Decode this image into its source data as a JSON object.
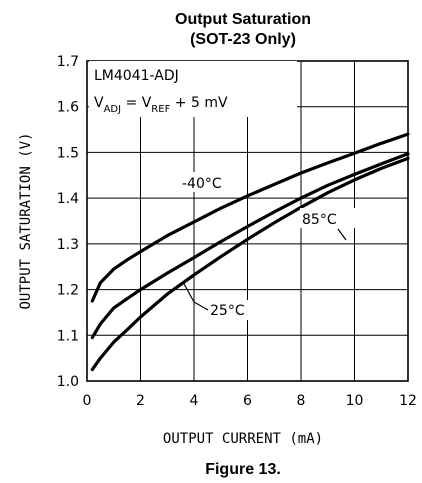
{
  "chart_data": {
    "type": "line",
    "title": "Output Saturation",
    "subtitle": "(SOT-23 Only)",
    "xlabel": "OUTPUT CURRENT (mA)",
    "ylabel": "OUTPUT SATURATION (V)",
    "xlim": [
      0,
      12
    ],
    "ylim": [
      1.0,
      1.7
    ],
    "x_ticks": [
      "0",
      "2",
      "4",
      "6",
      "8",
      "10",
      "12"
    ],
    "y_ticks": [
      "1.0",
      "1.1",
      "1.2",
      "1.3",
      "1.4",
      "1.5",
      "1.6",
      "1.7"
    ],
    "grid": true,
    "annotation": {
      "device": "LM4041-ADJ",
      "condition": {
        "v": "V",
        "adj": "ADJ",
        "eq": " = ",
        "v2": "V",
        "ref": "REF",
        "rest": " + 5 mV"
      }
    },
    "series": [
      {
        "name": "-40°C",
        "x": [
          0.2,
          0.5,
          1,
          1.5,
          2,
          3,
          4,
          5,
          6,
          7,
          8,
          9,
          10,
          11,
          12
        ],
        "y": [
          1.175,
          1.215,
          1.245,
          1.265,
          1.283,
          1.318,
          1.348,
          1.378,
          1.405,
          1.43,
          1.455,
          1.477,
          1.498,
          1.52,
          1.54
        ]
      },
      {
        "name": "85°C",
        "x": [
          0.2,
          0.5,
          1,
          1.5,
          2,
          3,
          4,
          5,
          6,
          7,
          8,
          9,
          10,
          11,
          12
        ],
        "y": [
          1.095,
          1.125,
          1.16,
          1.18,
          1.2,
          1.236,
          1.27,
          1.305,
          1.338,
          1.37,
          1.4,
          1.428,
          1.452,
          1.475,
          1.497
        ]
      },
      {
        "name": "25°C",
        "x": [
          0.2,
          0.5,
          1,
          1.5,
          2,
          3,
          4,
          5,
          6,
          7,
          8,
          9,
          10,
          11,
          12
        ],
        "y": [
          1.025,
          1.05,
          1.085,
          1.112,
          1.14,
          1.19,
          1.232,
          1.272,
          1.31,
          1.346,
          1.38,
          1.412,
          1.44,
          1.465,
          1.487
        ]
      }
    ],
    "caption": "Figure 13."
  }
}
